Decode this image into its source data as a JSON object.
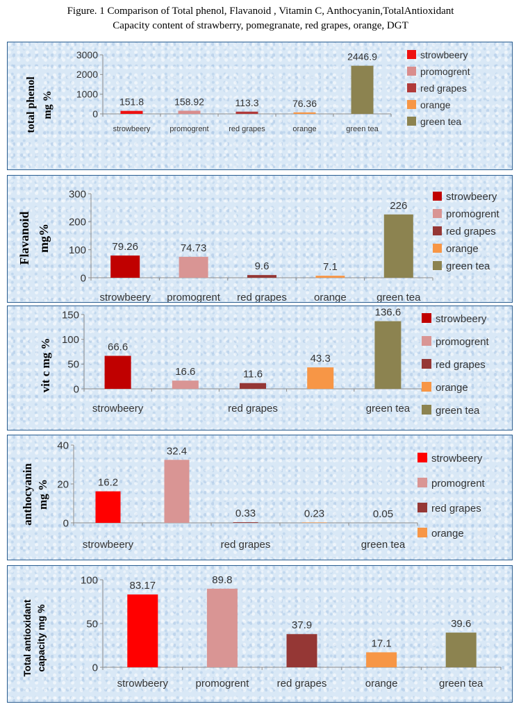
{
  "caption": {
    "line1": "Figure. 1 Comparison of Total phenol, Flavanoid , Vitamin C, Anthocyanin,TotalAntioxidant",
    "line2": "Capacity content of strawberry, pomegranate, red grapes, orange, DGT"
  },
  "chart_data": [
    {
      "type": "bar",
      "ylabel": "total phenol mg %",
      "ylim": [
        0,
        3000
      ],
      "yticks": [
        0,
        1000,
        2000,
        3000
      ],
      "categories": [
        "strowbeery",
        "promogrent",
        "red grapes",
        "orange",
        "green tea"
      ],
      "values": [
        151.8,
        158.92,
        113.3,
        76.36,
        2446.9
      ],
      "value_labels": [
        "151.8",
        "158.92",
        "113.3",
        "76.36",
        "2446.9"
      ],
      "x_tick_labels": [
        "strowbeery",
        "promogrent",
        "red grapes",
        "orange",
        "green tea"
      ],
      "legend": [
        "strowbeery",
        "promogrent",
        "red grapes",
        "orange",
        "green tea"
      ],
      "colors": [
        "#ee1111",
        "#d98d8d",
        "#b03a3a",
        "#f79646",
        "#8c8350"
      ],
      "legend_position": "right",
      "grid": false
    },
    {
      "type": "bar",
      "ylabel": "Flavanoid mg%",
      "ylim": [
        0,
        300
      ],
      "yticks": [
        0,
        100,
        200,
        300
      ],
      "categories": [
        "strowbeery",
        "promogrent",
        "red grapes",
        "orange",
        "green tea"
      ],
      "values": [
        79.26,
        74.73,
        9.6,
        7.1,
        226
      ],
      "value_labels": [
        "79.26",
        "74.73",
        "9.6",
        "7.1",
        "226"
      ],
      "x_tick_labels": [
        "strowbeery",
        "promogrent",
        "red grapes",
        "orange",
        "green tea"
      ],
      "legend": [
        "strowbeery",
        "promogrent",
        "red grapes",
        "orange",
        "green tea"
      ],
      "colors": [
        "#c00000",
        "#d99594",
        "#953735",
        "#f79646",
        "#8c8350"
      ],
      "legend_position": "right",
      "grid": false
    },
    {
      "type": "bar",
      "ylabel": "vit c mg %",
      "ylim": [
        0,
        150
      ],
      "yticks": [
        0,
        50,
        100,
        150
      ],
      "categories": [
        "strowbeery",
        "promogrent",
        "red grapes",
        "orange",
        "green tea"
      ],
      "values": [
        66.6,
        16.6,
        11.6,
        43.3,
        136.6
      ],
      "value_labels": [
        "66.6",
        "16.6",
        "11.6",
        "43.3",
        "136.6"
      ],
      "x_tick_labels": [
        "strowbeery",
        "",
        "red grapes",
        "",
        "green tea"
      ],
      "legend": [
        "strowbeery",
        "promogrent",
        "red grapes",
        "orange",
        "green tea"
      ],
      "colors": [
        "#c00000",
        "#d99594",
        "#953735",
        "#f79646",
        "#8c8350"
      ],
      "legend_position": "right",
      "grid": false
    },
    {
      "type": "bar",
      "ylabel": "anthocyanin mg %",
      "ylim": [
        0,
        40
      ],
      "yticks": [
        0,
        20,
        40
      ],
      "categories": [
        "strowbeery",
        "promogrent",
        "red grapes",
        "orange",
        "green tea"
      ],
      "values": [
        16.2,
        32.4,
        0.33,
        0.23,
        0.05
      ],
      "value_labels": [
        "16.2",
        "32.4",
        "0.33",
        "0.23",
        "0.05"
      ],
      "x_tick_labels": [
        "strowbeery",
        "",
        "red grapes",
        "",
        "green tea"
      ],
      "legend": [
        "strowbeery",
        "promogrent",
        "red grapes",
        "orange"
      ],
      "colors": [
        "#ff0000",
        "#d99594",
        "#953735",
        "#f79646",
        "#8c8350"
      ],
      "legend_position": "right",
      "grid": false
    },
    {
      "type": "bar",
      "ylabel": "Total antioxidant capacity mg %",
      "ylim": [
        0,
        100
      ],
      "yticks": [
        0,
        50,
        100
      ],
      "categories": [
        "strowbeery",
        "promogrent",
        "red grapes",
        "orange",
        "green tea"
      ],
      "values": [
        83.17,
        89.8,
        37.9,
        17.1,
        39.6
      ],
      "value_labels": [
        "83.17",
        "89.8",
        "37.9",
        "17.1",
        "39.6"
      ],
      "x_tick_labels": [
        "strowbeery",
        "promogrent",
        "red grapes",
        "orange",
        "green tea"
      ],
      "legend": [],
      "colors": [
        "#ff0000",
        "#d99594",
        "#953735",
        "#f79646",
        "#8c8350"
      ],
      "legend_position": "none",
      "grid": false
    }
  ]
}
